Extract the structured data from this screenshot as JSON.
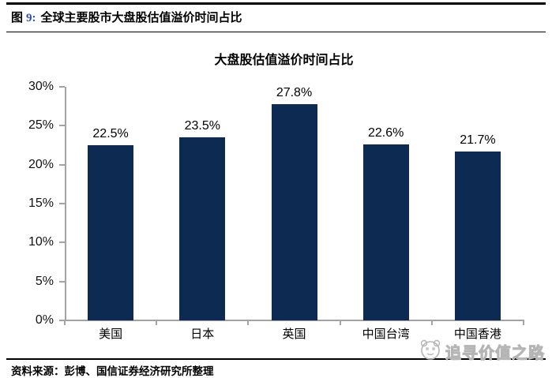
{
  "figure_header": {
    "fig": "图",
    "num": "9:",
    "title": "全球主要股市大盘股估值溢价时间占比"
  },
  "chart_data": {
    "type": "bar",
    "title": "大盘股估值溢价时间占比",
    "categories": [
      "美国",
      "日本",
      "英国",
      "中国台湾",
      "中国香港"
    ],
    "values": [
      22.5,
      23.5,
      27.8,
      22.6,
      21.7
    ],
    "value_labels": [
      "22.5%",
      "23.5%",
      "27.8%",
      "22.6%",
      "21.7%"
    ],
    "xlabel": "",
    "ylabel": "",
    "ylim": [
      0,
      30
    ],
    "ytick_step": 5,
    "ytick_labels": [
      "0%",
      "5%",
      "10%",
      "15%",
      "20%",
      "25%",
      "30%"
    ],
    "grid": false,
    "legend": "none",
    "bar_color": "#0d2b52",
    "axis_color": "#a3a3a3"
  },
  "source_note": "资料来源：彭博、国信证券经济研究所整理",
  "watermark": {
    "icon": "panda-logo-icon",
    "text": "追寻价值之路"
  }
}
